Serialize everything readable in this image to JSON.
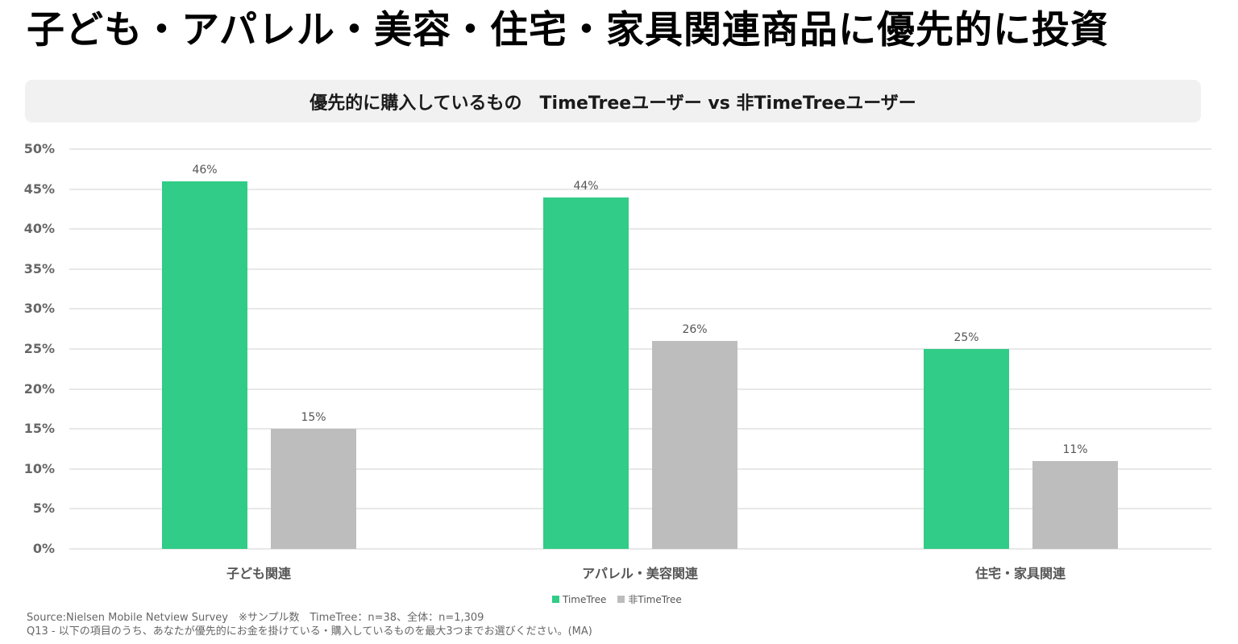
{
  "page": {
    "title": "子ども・アパレル・美容・住宅・家具関連商品に優先的に投資"
  },
  "chart_data": {
    "type": "bar",
    "title": "優先的に購入しているもの　TimeTreeユーザー vs 非TimeTreeユーザー",
    "categories": [
      "子ども関連",
      "アパレル・美容関連",
      "住宅・家具関連"
    ],
    "series": [
      {
        "name": "TimeTree",
        "color": "#31cc87",
        "values": [
          46,
          44,
          25
        ],
        "labels": [
          "46%",
          "44%",
          "25%"
        ]
      },
      {
        "name": "非TimeTree",
        "color": "#bdbdbd",
        "values": [
          15,
          26,
          11
        ],
        "labels": [
          "15%",
          "26%",
          "11%"
        ]
      }
    ],
    "xlabel": "",
    "ylabel": "",
    "ylim": [
      0,
      50
    ],
    "yticks": [
      "50%",
      "45%",
      "40%",
      "35%",
      "30%",
      "25%",
      "20%",
      "15%",
      "10%",
      "5%",
      "0%"
    ],
    "grid": true,
    "legend_position": "bottom"
  },
  "footer": {
    "source": "Source:Nielsen Mobile Netview Survey　※サンプル数　TimeTree：n=38、全体：n=1,309",
    "question": "Q13 - 以下の項目のうち、あなたが優先的にお金を掛けている・購入しているものを最大3つまでお選びください。(MA)"
  }
}
